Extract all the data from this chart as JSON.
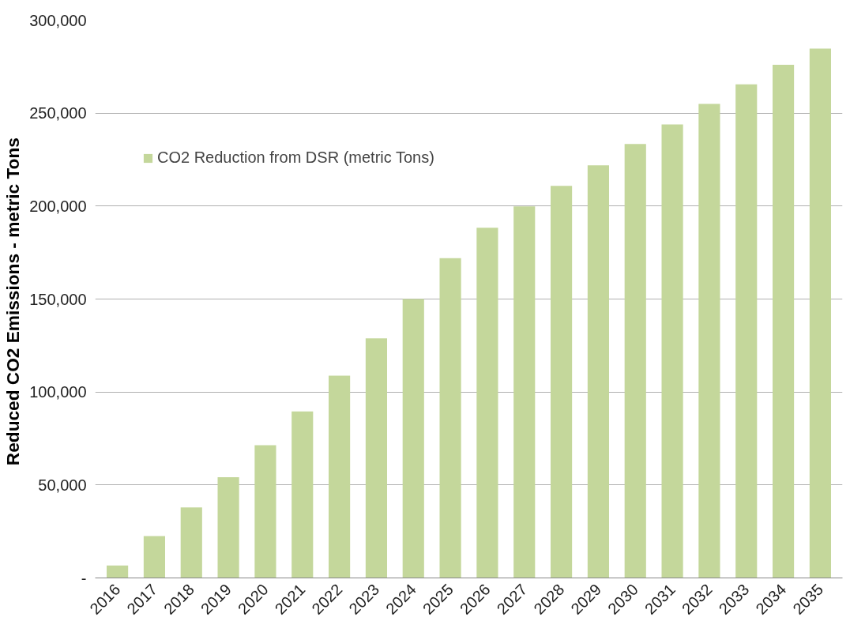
{
  "chart_data": {
    "type": "bar",
    "ylabel": "Reduced CO2 Emissions  - metric Tons",
    "categories": [
      "2016",
      "2017",
      "2018",
      "2019",
      "2020",
      "2021",
      "2022",
      "2023",
      "2024",
      "2025",
      "2026",
      "2027",
      "2028",
      "2029",
      "2030",
      "2031",
      "2032",
      "2033",
      "2034",
      "2035"
    ],
    "series": [
      {
        "name": "CO2 Reduction from DSR (metric Tons)",
        "color": "#c4d79b",
        "values": [
          6700,
          22500,
          37900,
          54200,
          71400,
          89600,
          108800,
          128900,
          150000,
          172000,
          188300,
          199800,
          210900,
          221900,
          233400,
          243900,
          255000,
          265500,
          276000,
          284700
        ]
      }
    ],
    "ylim": [
      0,
      300000
    ],
    "yticks": [
      {
        "value": 0,
        "label": "-"
      },
      {
        "value": 50000,
        "label": "50,000"
      },
      {
        "value": 100000,
        "label": "100,000"
      },
      {
        "value": 150000,
        "label": "150,000"
      },
      {
        "value": 200000,
        "label": "200,000"
      },
      {
        "value": 250000,
        "label": "250,000"
      },
      {
        "value": 300000,
        "label": "300,000"
      }
    ],
    "grid": "y",
    "legend": "top left"
  }
}
